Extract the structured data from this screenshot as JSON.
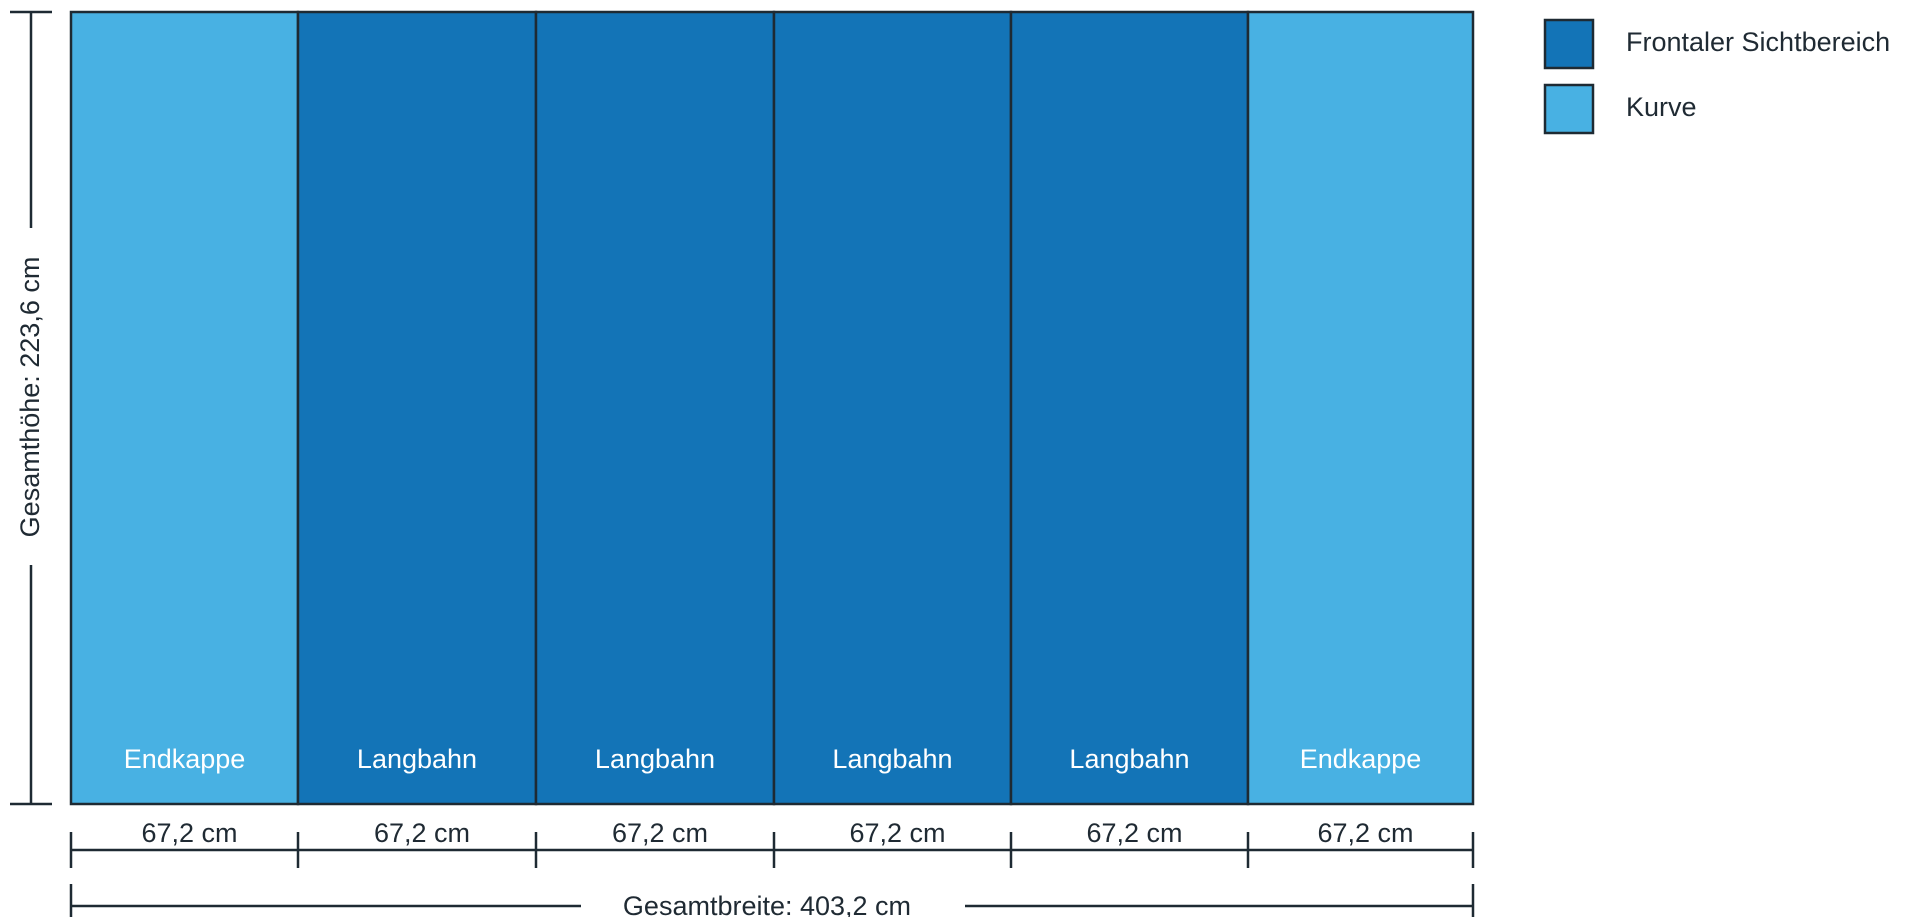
{
  "colors": {
    "front": "#1374b7",
    "curve": "#48b1e3",
    "outline": "#1e2a33"
  },
  "panels": [
    {
      "label": "Endkappe",
      "type": "curve",
      "width": "67,2 cm"
    },
    {
      "label": "Langbahn",
      "type": "front",
      "width": "67,2 cm"
    },
    {
      "label": "Langbahn",
      "type": "front",
      "width": "67,2 cm"
    },
    {
      "label": "Langbahn",
      "type": "front",
      "width": "67,2 cm"
    },
    {
      "label": "Langbahn",
      "type": "front",
      "width": "67,2 cm"
    },
    {
      "label": "Endkappe",
      "type": "curve",
      "width": "67,2 cm"
    }
  ],
  "height_label": "Gesamthöhe: 223,6 cm",
  "width_label": "Gesamtbreite: 403,2 cm",
  "legend": [
    {
      "label": "Frontaler Sichtbereich",
      "type": "front"
    },
    {
      "label": "Kurve",
      "type": "curve"
    }
  ]
}
